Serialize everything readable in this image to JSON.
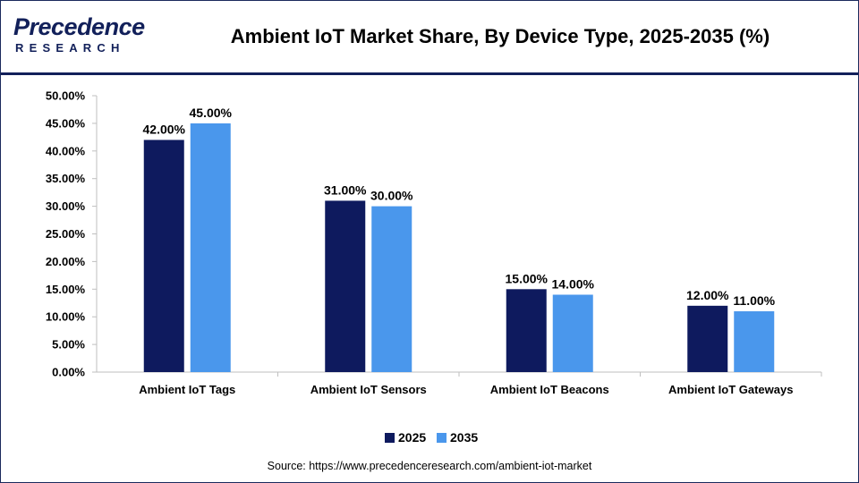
{
  "logo": {
    "word": "Precedence",
    "sub": "RESEARCH"
  },
  "title": "Ambient IoT Market Share, By Device Type, 2025-2035 (%)",
  "source": "Source: https://www.precedenceresearch.com/ambient-iot-market",
  "colors": {
    "series_2025": "#0e1a5e",
    "series_2035": "#4a97ec",
    "header_rule": "#12205a"
  },
  "chart_data": {
    "type": "bar",
    "categories": [
      "Ambient IoT Tags",
      "Ambient IoT Sensors",
      "Ambient IoT Beacons",
      "Ambient IoT Gateways"
    ],
    "series": [
      {
        "name": "2025",
        "values": [
          42,
          31,
          15,
          12
        ],
        "labels": [
          "42.00%",
          "31.00%",
          "15.00%",
          "12.00%"
        ]
      },
      {
        "name": "2035",
        "values": [
          45,
          30,
          14,
          11
        ],
        "labels": [
          "45.00%",
          "30.00%",
          "14.00%",
          "11.00%"
        ]
      }
    ],
    "yticks": [
      "0.00%",
      "5.00%",
      "10.00%",
      "15.00%",
      "20.00%",
      "25.00%",
      "30.00%",
      "35.00%",
      "40.00%",
      "45.00%",
      "50.00%"
    ],
    "ylim": [
      0,
      50
    ],
    "ystep": 5,
    "grid": false,
    "legend_position": "bottom"
  }
}
